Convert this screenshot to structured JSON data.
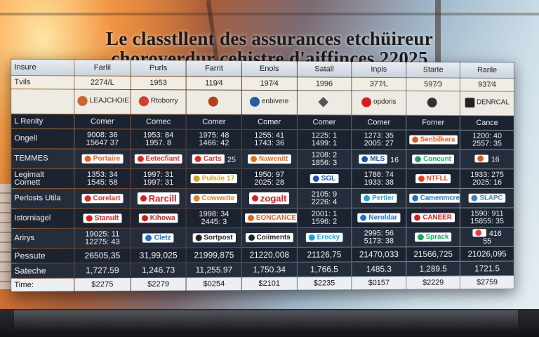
{
  "title_line1": "Le classtllent des assurances etchüireur",
  "title_line2": "choroverdur cehistre d'aiffinces 22025",
  "header": [
    "Insure",
    "Farlil",
    "Purls",
    "Farrit",
    "Enols",
    "Satall",
    "Inpis",
    "Starte",
    "Rarile"
  ],
  "row_tvils": [
    "Tvils",
    "2274/L",
    "1953",
    "119⁄4",
    "197⁄4",
    "1996",
    "377⁄L",
    "597⁄3",
    "937⁄4"
  ],
  "logos": [
    {
      "label": "LEAJCHOIE",
      "icon": "shield",
      "color": "#c8672a"
    },
    {
      "label": "Rtoborry",
      "icon": "circle",
      "color": "#d04030"
    },
    {
      "label": "",
      "icon": "circle",
      "color": "#b04020"
    },
    {
      "label": "enbivere",
      "icon": "circle",
      "color": "#2060a0"
    },
    {
      "label": "",
      "icon": "diamond",
      "color": "#555"
    },
    {
      "label": "opdoris",
      "icon": "circle",
      "color": "#d02020"
    },
    {
      "label": "",
      "icon": "circle",
      "color": "#333"
    },
    {
      "label": "DENRCAL",
      "icon": "square",
      "color": "#222"
    }
  ],
  "row_renity": [
    "L Renity",
    "Comer",
    "Comec",
    "Comer",
    "Comer",
    "Comer",
    "Comer",
    "Forner",
    "Cance"
  ],
  "rows": [
    {
      "label": "Ongell",
      "cells": [
        [
          "9008: 36",
          "15647 37"
        ],
        [
          "1953: 84",
          "1957. 8"
        ],
        [
          "1975: 48",
          "1466: 42"
        ],
        [
          "1255: 41",
          "1743: 36"
        ],
        [
          "1225: 1",
          "1499: 1"
        ],
        [
          "1273: 35",
          "2005: 27"
        ],
        [
          {
            "brand": "Senbilkera",
            "color": "#e05a20"
          }
        ],
        [
          "1200: 40",
          "2557: 35"
        ]
      ]
    },
    {
      "label": "TEMMES",
      "cells": [
        [
          {
            "brand": "Portaire",
            "color": "#e0602a"
          }
        ],
        [
          {
            "brand": "Eetecfiant",
            "color": "#d03030"
          }
        ],
        [
          {
            "brand": "Carts",
            "color": "#d03020",
            "extra": "25"
          }
        ],
        [
          {
            "brand": "Nawenitt",
            "color": "#e07020"
          }
        ],
        [
          "1208: 2",
          "1856: 3"
        ],
        [
          {
            "brand": "MLS",
            "color": "#2050a0",
            "extra": "16"
          }
        ],
        [
          {
            "brand": "Concunt",
            "color": "#20a060"
          }
        ],
        [
          {
            "brand": "",
            "color": "#e05a20",
            "extra": "16"
          }
        ]
      ]
    },
    {
      "label": "Legimalt Cornett",
      "cells": [
        [
          "1353: 34",
          "1545: 58"
        ],
        [
          "1997: 31",
          "1997: 31"
        ],
        [
          {
            "brand": "Pulsile 17",
            "color": "#d0a020",
            "extra": ""
          }
        ],
        [
          "1950: 97",
          "2025: 28"
        ],
        [
          {
            "brand": "SGL",
            "color": "#2050a0"
          }
        ],
        [
          "1788: 74",
          "1933: 38"
        ],
        [
          {
            "brand": "NTFLL",
            "color": "#e04020"
          }
        ],
        [
          "1933: 275",
          "2025: 16"
        ]
      ]
    },
    {
      "label": "Perlosts Utila",
      "cells": [
        [
          {
            "brand": "Corelart",
            "color": "#d03020"
          }
        ],
        [
          {
            "brand": "Rarcill",
            "color": "#d02020",
            "big": true
          }
        ],
        [
          {
            "brand": "Cowwette",
            "color": "#e08030"
          }
        ],
        [
          {
            "brand": "zogalt",
            "color": "#d02020",
            "big": true
          }
        ],
        [
          "2105: 9",
          "2226: 4"
        ],
        [
          {
            "brand": "Pertler",
            "color": "#20a0d0"
          }
        ],
        [
          {
            "brand": "Camenmcrevaka",
            "color": "#2070c0"
          }
        ],
        [
          {
            "brand": "SLAPC",
            "color": "#4080c0"
          }
        ]
      ]
    },
    {
      "label": "Istorniagel",
      "cells": [
        [
          {
            "brand": "Stanult",
            "color": "#d02020"
          }
        ],
        [
          {
            "brand": "Kihowa",
            "color": "#c02020"
          }
        ],
        [
          "1998: 34",
          "2445: 3"
        ],
        [
          {
            "brand": "EONCANCE",
            "color": "#e06020"
          }
        ],
        [
          "2001: 1",
          "1596: 2"
        ],
        [
          {
            "brand": "Neroldar",
            "color": "#2070c0"
          }
        ],
        [
          {
            "brand": "CANEER",
            "color": "#d02020"
          }
        ],
        [
          "1590: 911",
          "15855: 35"
        ]
      ]
    },
    {
      "label": "Arirys",
      "cells": [
        [
          "19025: 11",
          "12275: 43"
        ],
        [
          {
            "brand": "Cletz",
            "color": "#2070c0"
          }
        ],
        [
          {
            "brand": "Sortpost",
            "color": "#222"
          }
        ],
        [
          {
            "brand": "Coiiments",
            "color": "#222"
          }
        ],
        [
          {
            "brand": "Erecky",
            "color": "#20a0d0"
          }
        ],
        [
          "2995: 56",
          "5173: 38"
        ],
        [
          {
            "brand": "Sprack",
            "color": "#20a060"
          }
        ],
        [
          {
            "brand": "",
            "color": "#e04040",
            "extra": "416",
            "sub": "55"
          }
        ]
      ]
    }
  ],
  "row_pessute": [
    "Pessute",
    "26505,35",
    "31,99,025",
    "21999,875",
    "21220,008",
    "21126,75",
    "21470,033",
    "21566,725",
    "21026,095"
  ],
  "row_sateche": [
    "Sateche",
    "1,727.59",
    "1,246.73",
    "11,255.97",
    "1,750.34",
    "1,766.5",
    "1485.3",
    "1,289.5",
    "1721.5"
  ],
  "row_time": [
    "Time:",
    "$2275",
    "$2279",
    "$0254",
    "$2101",
    "$2235",
    "$0157",
    "$2229",
    "$2759"
  ],
  "colors": {
    "accent": "#f59a3c",
    "table_dark": "#1b2230"
  }
}
